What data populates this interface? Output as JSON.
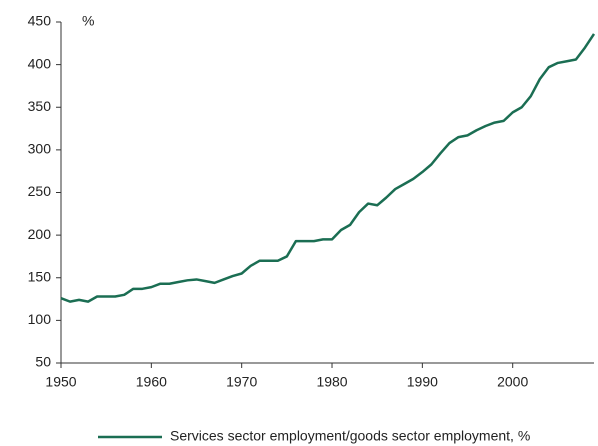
{
  "chart_data": {
    "type": "line",
    "y_label": "%",
    "x": [
      1950,
      1951,
      1952,
      1953,
      1954,
      1955,
      1956,
      1957,
      1958,
      1959,
      1960,
      1961,
      1962,
      1963,
      1964,
      1965,
      1966,
      1967,
      1968,
      1969,
      1970,
      1971,
      1972,
      1973,
      1974,
      1975,
      1976,
      1977,
      1978,
      1979,
      1980,
      1981,
      1982,
      1983,
      1984,
      1985,
      1986,
      1987,
      1988,
      1989,
      1990,
      1991,
      1992,
      1993,
      1994,
      1995,
      1996,
      1997,
      1998,
      1999,
      2000,
      2001,
      2002,
      2003,
      2004,
      2005,
      2006,
      2007,
      2008,
      2009
    ],
    "series": [
      {
        "name": "Services sector employment/goods sector employment, %",
        "color": "#1b6e53",
        "values": [
          126,
          122,
          124,
          122,
          128,
          128,
          128,
          130,
          137,
          137,
          139,
          143,
          143,
          145,
          147,
          148,
          146,
          144,
          148,
          152,
          155,
          164,
          170,
          170,
          170,
          175,
          193,
          193,
          193,
          195,
          195,
          206,
          212,
          227,
          237,
          235,
          244,
          254,
          260,
          266,
          274,
          283,
          296,
          308,
          315,
          317,
          323,
          328,
          332,
          334,
          344,
          350,
          363,
          383,
          397,
          402,
          404,
          406,
          420,
          436
        ]
      }
    ],
    "xlim": [
      1950,
      2009
    ],
    "xticks": [
      1950,
      1960,
      1970,
      1980,
      1990,
      2000
    ],
    "ylim": [
      50,
      450
    ],
    "yticks": [
      50,
      100,
      150,
      200,
      250,
      300,
      350,
      400,
      450
    ],
    "grid": false
  }
}
